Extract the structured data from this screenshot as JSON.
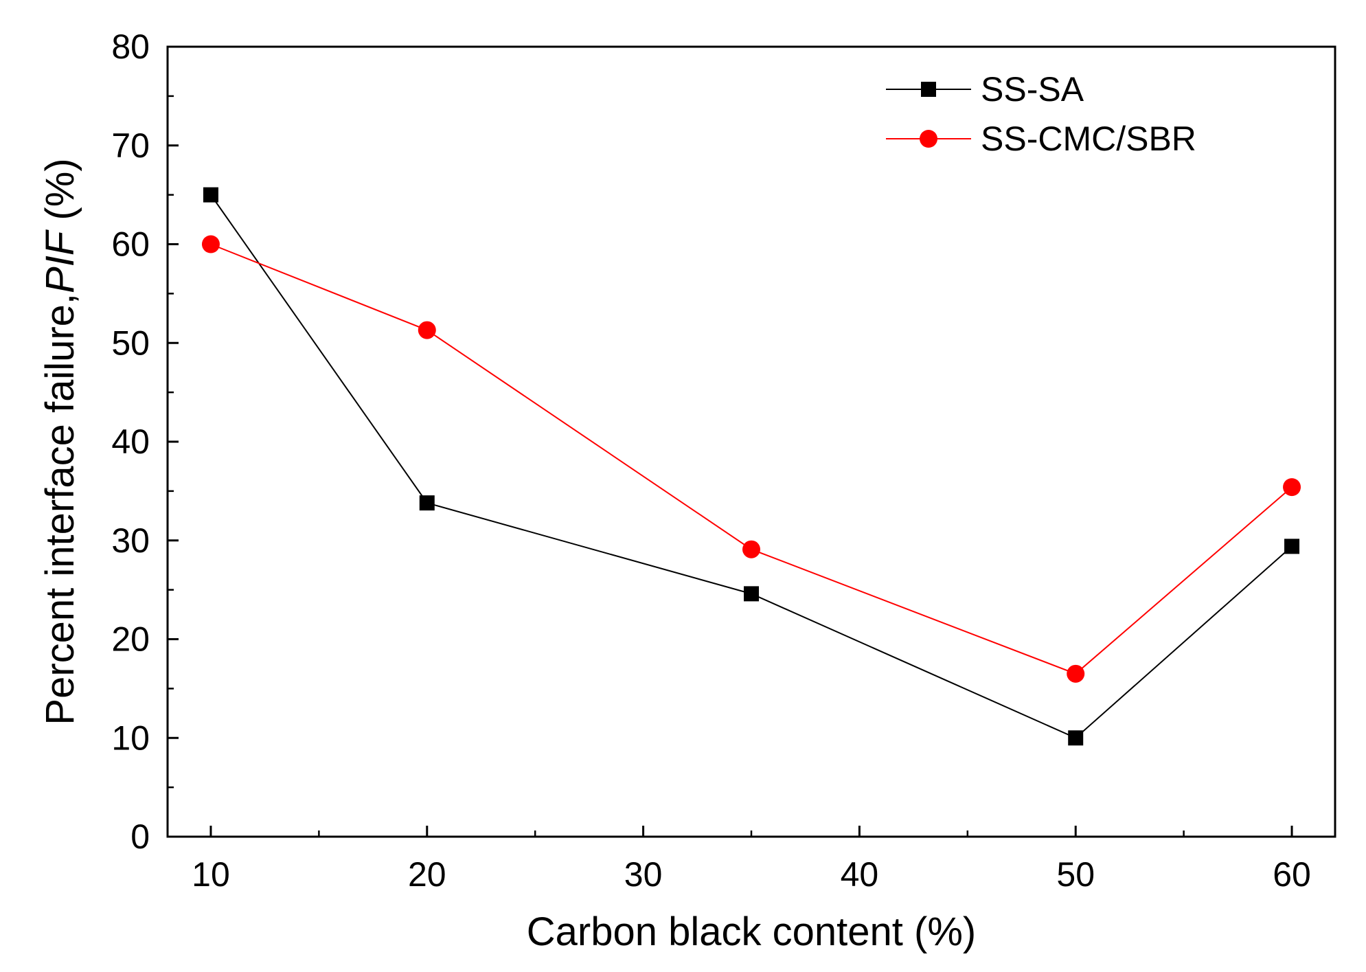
{
  "chart_data": {
    "type": "line",
    "title": "",
    "xlabel": "Carbon black content (%)",
    "ylabel_prefix": "Percent interface failure,",
    "ylabel_italic": "PIF",
    "ylabel_suffix": " (%)",
    "xlim": [
      8,
      62
    ],
    "ylim": [
      0,
      80
    ],
    "xticks": [
      10,
      20,
      30,
      40,
      50,
      60
    ],
    "xticks_minor": [
      15,
      25,
      35,
      45,
      55
    ],
    "yticks": [
      0,
      10,
      20,
      30,
      40,
      50,
      60,
      70,
      80
    ],
    "yticks_minor": [
      5,
      15,
      25,
      35,
      45,
      55,
      65,
      75
    ],
    "grid": false,
    "legend_position": "top-right",
    "series": [
      {
        "name": "SS-SA",
        "color": "#000000",
        "marker": "square",
        "x": [
          10,
          20,
          35,
          50,
          60
        ],
        "y": [
          65,
          33.8,
          24.6,
          10,
          29.4
        ]
      },
      {
        "name": "SS-CMC/SBR",
        "color": "#ff0000",
        "marker": "circle",
        "x": [
          10,
          20,
          35,
          50,
          60
        ],
        "y": [
          60,
          51.3,
          29.1,
          16.5,
          35.4
        ]
      }
    ]
  }
}
